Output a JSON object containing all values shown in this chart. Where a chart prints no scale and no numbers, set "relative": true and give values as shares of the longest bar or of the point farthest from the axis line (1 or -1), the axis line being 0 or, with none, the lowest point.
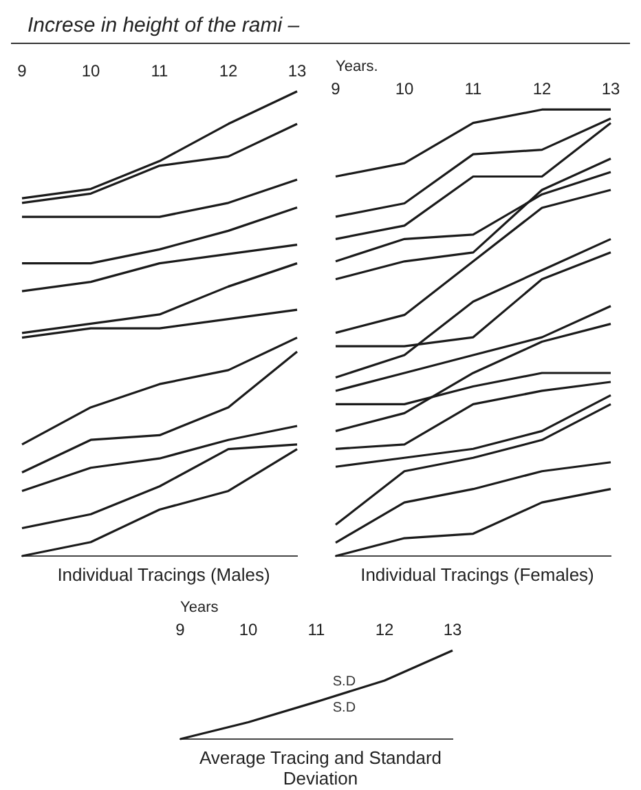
{
  "chart_data": [
    {
      "type": "line",
      "title": "Increse in height of the rami –",
      "subtitle": "Individual Tracings (Males)",
      "categories": [
        "9",
        "10",
        "11",
        "12",
        "13"
      ],
      "relative": true,
      "grid": false,
      "legend": false,
      "marker": "none",
      "line_style": "solid",
      "series": [
        {
          "color": "#1a1a1a",
          "values": [
            0.77,
            0.79,
            0.85,
            0.93,
            1
          ]
        },
        {
          "color": "#1a1a1a",
          "values": [
            0.76,
            0.78,
            0.84,
            0.86,
            0.93
          ]
        },
        {
          "color": "#1a1a1a",
          "values": [
            0.73,
            0.73,
            0.73,
            0.76,
            0.81
          ]
        },
        {
          "color": "#1a1a1a",
          "values": [
            0.63,
            0.63,
            0.66,
            0.7,
            0.75
          ]
        },
        {
          "color": "#1a1a1a",
          "values": [
            0.57,
            0.59,
            0.63,
            0.65,
            0.67
          ]
        },
        {
          "color": "#1a1a1a",
          "values": [
            0.48,
            0.5,
            0.52,
            0.58,
            0.63
          ]
        },
        {
          "color": "#1a1a1a",
          "values": [
            0.47,
            0.49,
            0.49,
            0.51,
            0.53
          ]
        },
        {
          "color": "#1a1a1a",
          "values": [
            0.24,
            0.32,
            0.37,
            0.4,
            0.47
          ]
        },
        {
          "color": "#1a1a1a",
          "values": [
            0.18,
            0.25,
            0.26,
            0.32,
            0.44
          ]
        },
        {
          "color": "#1a1a1a",
          "values": [
            0.14,
            0.19,
            0.21,
            0.25,
            0.28
          ]
        },
        {
          "color": "#1a1a1a",
          "values": [
            0.06,
            0.09,
            0.15,
            0.23,
            0.24
          ]
        },
        {
          "color": "#1a1a1a",
          "values": [
            0,
            0.03,
            0.1,
            0.14,
            0.23
          ]
        }
      ]
    },
    {
      "type": "line",
      "subtitle": "Individual Tracings (Females)",
      "xlabel": "Years.",
      "categories": [
        "9",
        "10",
        "11",
        "12",
        "13"
      ],
      "relative": true,
      "grid": false,
      "legend": false,
      "marker": "none",
      "line_style": "solid",
      "series": [
        {
          "color": "#1a1a1a",
          "values": [
            0.85,
            0.88,
            0.97,
            1,
            1
          ]
        },
        {
          "color": "#1a1a1a",
          "values": [
            0.76,
            0.79,
            0.9,
            0.91,
            0.98
          ]
        },
        {
          "color": "#1a1a1a",
          "values": [
            0.71,
            0.74,
            0.85,
            0.85,
            0.97
          ]
        },
        {
          "color": "#1a1a1a",
          "values": [
            0.66,
            0.71,
            0.72,
            0.81,
            0.86
          ]
        },
        {
          "color": "#1a1a1a",
          "values": [
            0.62,
            0.66,
            0.68,
            0.82,
            0.89
          ]
        },
        {
          "color": "#1a1a1a",
          "values": [
            0.5,
            0.54,
            0.66,
            0.78,
            0.82
          ]
        },
        {
          "color": "#1a1a1a",
          "values": [
            0.47,
            0.47,
            0.49,
            0.62,
            0.68
          ]
        },
        {
          "color": "#1a1a1a",
          "values": [
            0.4,
            0.45,
            0.57,
            0.64,
            0.71
          ]
        },
        {
          "color": "#1a1a1a",
          "values": [
            0.37,
            0.41,
            0.45,
            0.49,
            0.56
          ]
        },
        {
          "color": "#1a1a1a",
          "values": [
            0.34,
            0.34,
            0.38,
            0.41,
            0.41
          ]
        },
        {
          "color": "#1a1a1a",
          "values": [
            0.28,
            0.32,
            0.41,
            0.48,
            0.52
          ]
        },
        {
          "color": "#1a1a1a",
          "values": [
            0.24,
            0.25,
            0.34,
            0.37,
            0.39
          ]
        },
        {
          "color": "#1a1a1a",
          "values": [
            0.2,
            0.22,
            0.24,
            0.28,
            0.36
          ]
        },
        {
          "color": "#1a1a1a",
          "values": [
            0.07,
            0.19,
            0.22,
            0.26,
            0.34
          ]
        },
        {
          "color": "#1a1a1a",
          "values": [
            0.03,
            0.12,
            0.15,
            0.19,
            0.21
          ]
        },
        {
          "color": "#1a1a1a",
          "values": [
            0,
            0.04,
            0.05,
            0.12,
            0.15
          ]
        }
      ]
    },
    {
      "type": "line",
      "subtitle": "Average Tracing and Standard Deviation",
      "xlabel": "Years",
      "categories": [
        "9",
        "10",
        "11",
        "12",
        "13"
      ],
      "relative": true,
      "grid": false,
      "legend": false,
      "marker": "none",
      "line_style": "solid",
      "annotations": [
        "S.D",
        "S.D"
      ],
      "series": [
        {
          "color": "#1a1a1a",
          "values": [
            0,
            0.19,
            0.42,
            0.66,
            1
          ]
        }
      ]
    }
  ]
}
